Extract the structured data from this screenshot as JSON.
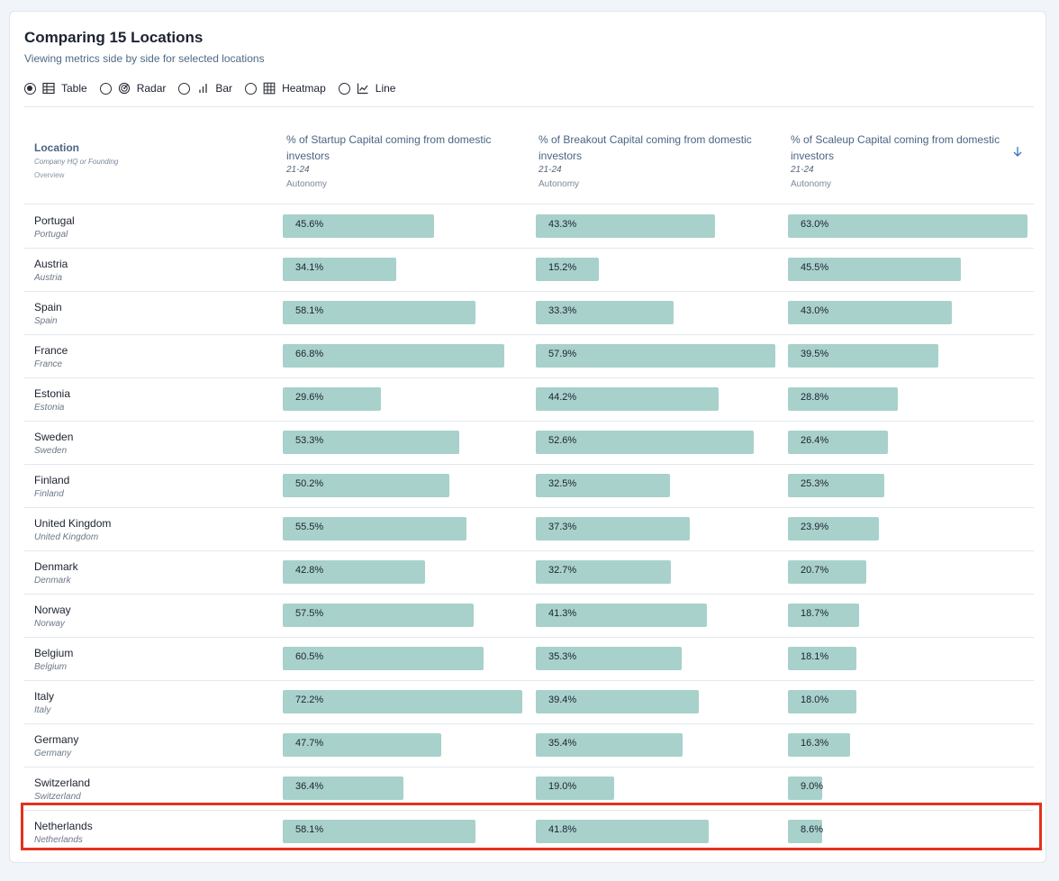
{
  "header": {
    "title": "Comparing 15 Locations",
    "subtitle": "Viewing metrics side by side for selected locations"
  },
  "view_options": [
    {
      "label": "Table",
      "icon": "table-icon",
      "selected": true
    },
    {
      "label": "Radar",
      "icon": "radar-icon",
      "selected": false
    },
    {
      "label": "Bar",
      "icon": "bar-chart-icon",
      "selected": false
    },
    {
      "label": "Heatmap",
      "icon": "heatmap-icon",
      "selected": false
    },
    {
      "label": "Line",
      "icon": "line-chart-icon",
      "selected": false
    }
  ],
  "table": {
    "location_header": {
      "title": "Location",
      "subtitle": "Company HQ or Founding",
      "note": "Overview"
    },
    "columns": [
      {
        "title": "% of Startup Capital coming from domestic investors",
        "period": "21-24",
        "theme": "Autonomy"
      },
      {
        "title": "% of Breakout Capital coming from domestic investors",
        "period": "21-24",
        "theme": "Autonomy"
      },
      {
        "title": "% of Scaleup Capital coming from domestic investors",
        "period": "21-24",
        "theme": "Autonomy",
        "sorted": "descending"
      }
    ],
    "rows": [
      {
        "name": "Portugal",
        "sub": "Portugal",
        "values": [
          45.6,
          43.3,
          63.0
        ],
        "labels": [
          "45.6%",
          "43.3%",
          "63.0%"
        ]
      },
      {
        "name": "Austria",
        "sub": "Austria",
        "values": [
          34.1,
          15.2,
          45.5
        ],
        "labels": [
          "34.1%",
          "15.2%",
          "45.5%"
        ]
      },
      {
        "name": "Spain",
        "sub": "Spain",
        "values": [
          58.1,
          33.3,
          43.0
        ],
        "labels": [
          "58.1%",
          "33.3%",
          "43.0%"
        ]
      },
      {
        "name": "France",
        "sub": "France",
        "values": [
          66.8,
          57.9,
          39.5
        ],
        "labels": [
          "66.8%",
          "57.9%",
          "39.5%"
        ]
      },
      {
        "name": "Estonia",
        "sub": "Estonia",
        "values": [
          29.6,
          44.2,
          28.8
        ],
        "labels": [
          "29.6%",
          "44.2%",
          "28.8%"
        ]
      },
      {
        "name": "Sweden",
        "sub": "Sweden",
        "values": [
          53.3,
          52.6,
          26.4
        ],
        "labels": [
          "53.3%",
          "52.6%",
          "26.4%"
        ]
      },
      {
        "name": "Finland",
        "sub": "Finland",
        "values": [
          50.2,
          32.5,
          25.3
        ],
        "labels": [
          "50.2%",
          "32.5%",
          "25.3%"
        ]
      },
      {
        "name": "United Kingdom",
        "sub": "United Kingdom",
        "values": [
          55.5,
          37.3,
          23.9
        ],
        "labels": [
          "55.5%",
          "37.3%",
          "23.9%"
        ]
      },
      {
        "name": "Denmark",
        "sub": "Denmark",
        "values": [
          42.8,
          32.7,
          20.7
        ],
        "labels": [
          "42.8%",
          "32.7%",
          "20.7%"
        ]
      },
      {
        "name": "Norway",
        "sub": "Norway",
        "values": [
          57.5,
          41.3,
          18.7
        ],
        "labels": [
          "57.5%",
          "41.3%",
          "18.7%"
        ]
      },
      {
        "name": "Belgium",
        "sub": "Belgium",
        "values": [
          60.5,
          35.3,
          18.1
        ],
        "labels": [
          "60.5%",
          "35.3%",
          "18.1%"
        ]
      },
      {
        "name": "Italy",
        "sub": "Italy",
        "values": [
          72.2,
          39.4,
          18.0
        ],
        "labels": [
          "72.2%",
          "39.4%",
          "18.0%"
        ]
      },
      {
        "name": "Germany",
        "sub": "Germany",
        "values": [
          47.7,
          35.4,
          16.3
        ],
        "labels": [
          "47.7%",
          "35.4%",
          "16.3%"
        ]
      },
      {
        "name": "Switzerland",
        "sub": "Switzerland",
        "values": [
          36.4,
          19.0,
          9.0
        ],
        "labels": [
          "36.4%",
          "19.0%",
          "9.0%"
        ]
      },
      {
        "name": "Netherlands",
        "sub": "Netherlands",
        "values": [
          58.1,
          41.8,
          8.6
        ],
        "labels": [
          "58.1%",
          "41.8%",
          "8.6%"
        ],
        "highlighted": true
      }
    ]
  },
  "colors": {
    "bar": "#a8d1cb",
    "highlight": "#e3321e",
    "header_text": "#4a6585",
    "sort_arrow": "#3d6fb8"
  }
}
